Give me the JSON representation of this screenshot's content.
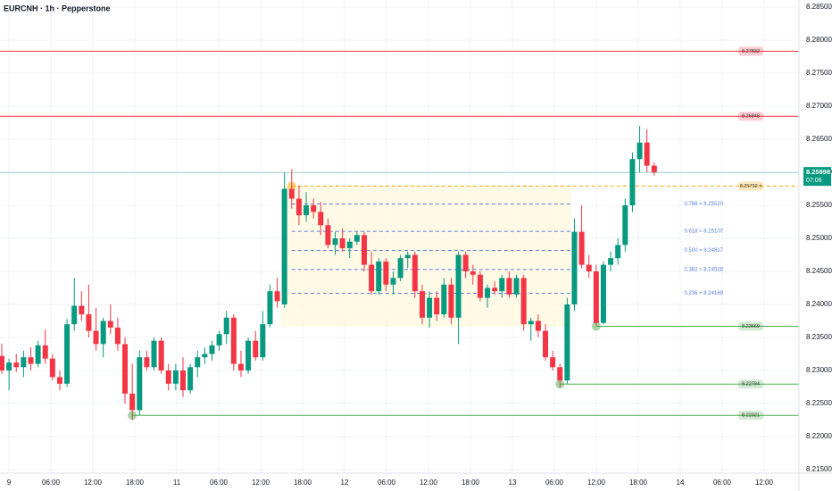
{
  "chart_data": {
    "type": "candlestick",
    "title": "EURCNH · 1h · Pepperstone",
    "up_color": "#089981",
    "down_color": "#f23645",
    "ylim": [
      8.21446,
      8.28608
    ],
    "yticks": [
      {
        "value": 8.285,
        "label": "8.28500"
      },
      {
        "value": 8.28,
        "label": "8.28000"
      },
      {
        "value": 8.275,
        "label": "8.27500"
      },
      {
        "value": 8.27,
        "label": "8.27000"
      },
      {
        "value": 8.265,
        "label": "8.26500"
      },
      {
        "value": 8.26,
        "label": "8.26000"
      },
      {
        "value": 8.255,
        "label": "8.25500"
      },
      {
        "value": 8.25,
        "label": "8.25000"
      },
      {
        "value": 8.245,
        "label": "8.24500"
      },
      {
        "value": 8.24,
        "label": "8.24000"
      },
      {
        "value": 8.235,
        "label": "8.23500"
      },
      {
        "value": 8.23,
        "label": "8.23000"
      },
      {
        "value": 8.225,
        "label": "8.22500"
      },
      {
        "value": 8.22,
        "label": "8.22000"
      },
      {
        "value": 8.215,
        "label": "8.21500"
      }
    ],
    "time_labels": [
      "9",
      "06:00",
      "12:00",
      "18:00",
      "11",
      "06:00",
      "12:00",
      "18:00",
      "12",
      "06:00",
      "12:00",
      "18:00",
      "13",
      "06:00",
      "12:00",
      "18:00",
      "14",
      "06:00",
      "12:00"
    ],
    "grid": true,
    "candles": [
      [
        8.2322,
        8.234,
        8.2295,
        8.23
      ],
      [
        8.23,
        8.2318,
        8.227,
        8.2312
      ],
      [
        8.2312,
        8.2325,
        8.2298,
        8.2305
      ],
      [
        8.2305,
        8.233,
        8.229,
        8.232
      ],
      [
        8.232,
        8.2335,
        8.23,
        8.231
      ],
      [
        8.231,
        8.2345,
        8.2305,
        8.2338
      ],
      [
        8.2338,
        8.2362,
        8.231,
        8.2318
      ],
      [
        8.2318,
        8.2325,
        8.2285,
        8.229
      ],
      [
        8.229,
        8.23,
        8.227,
        8.228
      ],
      [
        8.228,
        8.2378,
        8.2275,
        8.237
      ],
      [
        8.237,
        8.244,
        8.236,
        8.2398
      ],
      [
        8.2398,
        8.242,
        8.2375,
        8.2385
      ],
      [
        8.2385,
        8.243,
        8.235,
        8.236
      ],
      [
        8.236,
        8.2395,
        8.233,
        8.234
      ],
      [
        8.234,
        8.238,
        8.232,
        8.2375
      ],
      [
        8.2375,
        8.24,
        8.2355,
        8.2365
      ],
      [
        8.2365,
        8.238,
        8.233,
        8.234
      ],
      [
        8.234,
        8.235,
        8.225,
        8.2265
      ],
      [
        8.2265,
        8.231,
        8.2225,
        8.224
      ],
      [
        8.224,
        8.233,
        8.2232,
        8.232
      ],
      [
        8.232,
        8.233,
        8.23,
        8.2305
      ],
      [
        8.2305,
        8.235,
        8.23,
        8.2345
      ],
      [
        8.2345,
        8.235,
        8.2295,
        8.23
      ],
      [
        8.23,
        8.231,
        8.227,
        8.228
      ],
      [
        8.228,
        8.231,
        8.227,
        8.23
      ],
      [
        8.23,
        8.232,
        8.226,
        8.227
      ],
      [
        8.227,
        8.231,
        8.2265,
        8.2305
      ],
      [
        8.2305,
        8.233,
        8.229,
        8.232
      ],
      [
        8.232,
        8.2335,
        8.231,
        8.2325
      ],
      [
        8.2325,
        8.2345,
        8.2315,
        8.2338
      ],
      [
        8.2338,
        8.236,
        8.233,
        8.2355
      ],
      [
        8.2355,
        8.239,
        8.234,
        8.238
      ],
      [
        8.238,
        8.2385,
        8.23,
        8.231
      ],
      [
        8.231,
        8.233,
        8.229,
        8.23
      ],
      [
        8.23,
        8.235,
        8.2295,
        8.2345
      ],
      [
        8.2345,
        8.236,
        8.2315,
        8.232
      ],
      [
        8.232,
        8.239,
        8.2315,
        8.237
      ],
      [
        8.237,
        8.243,
        8.2365,
        8.242
      ],
      [
        8.242,
        8.244,
        8.2395,
        8.2405
      ],
      [
        8.24,
        8.26,
        8.2395,
        8.2575
      ],
      [
        8.2575,
        8.2605,
        8.2545,
        8.256
      ],
      [
        8.256,
        8.258,
        8.252,
        8.2535
      ],
      [
        8.2535,
        8.257,
        8.2525,
        8.255
      ],
      [
        8.255,
        8.256,
        8.253,
        8.254
      ],
      [
        8.254,
        8.2555,
        8.2505,
        8.252
      ],
      [
        8.252,
        8.253,
        8.2485,
        8.249
      ],
      [
        8.249,
        8.251,
        8.2475,
        8.25
      ],
      [
        8.25,
        8.2515,
        8.248,
        8.2485
      ],
      [
        8.2485,
        8.25,
        8.247,
        8.2495
      ],
      [
        8.2495,
        8.251,
        8.249,
        8.2505
      ],
      [
        8.2505,
        8.251,
        8.245,
        8.246
      ],
      [
        8.246,
        8.248,
        8.2415,
        8.242
      ],
      [
        8.242,
        8.247,
        8.2415,
        8.2465
      ],
      [
        8.2465,
        8.247,
        8.242,
        8.243
      ],
      [
        8.243,
        8.245,
        8.2415,
        8.244
      ],
      [
        8.244,
        8.2475,
        8.2435,
        8.247
      ],
      [
        8.247,
        8.248,
        8.2455,
        8.2475
      ],
      [
        8.2475,
        8.248,
        8.241,
        8.242
      ],
      [
        8.242,
        8.243,
        8.237,
        8.238
      ],
      [
        8.238,
        8.242,
        8.2365,
        8.241
      ],
      [
        8.241,
        8.242,
        8.2375,
        8.2385
      ],
      [
        8.2385,
        8.244,
        8.238,
        8.243
      ],
      [
        8.243,
        8.244,
        8.237,
        8.238
      ],
      [
        8.238,
        8.248,
        8.234,
        8.2475
      ],
      [
        8.2475,
        8.248,
        8.244,
        8.245
      ],
      [
        8.245,
        8.246,
        8.243,
        8.2445
      ],
      [
        8.2445,
        8.245,
        8.2405,
        8.241
      ],
      [
        8.241,
        8.243,
        8.2395,
        8.2425
      ],
      [
        8.2425,
        8.2435,
        8.2415,
        8.242
      ],
      [
        8.242,
        8.2445,
        8.241,
        8.244
      ],
      [
        8.244,
        8.245,
        8.241,
        8.2415
      ],
      [
        8.2415,
        8.2445,
        8.241,
        8.244
      ],
      [
        8.244,
        8.2445,
        8.236,
        8.237
      ],
      [
        8.237,
        8.238,
        8.2345,
        8.2375
      ],
      [
        8.2375,
        8.2385,
        8.235,
        8.236
      ],
      [
        8.236,
        8.237,
        8.2315,
        8.232
      ],
      [
        8.232,
        8.233,
        8.23,
        8.2305
      ],
      [
        8.2305,
        8.231,
        8.2275,
        8.2285
      ],
      [
        8.2285,
        8.241,
        8.228,
        8.24
      ],
      [
        8.24,
        8.253,
        8.239,
        8.251
      ],
      [
        8.251,
        8.255,
        8.2455,
        8.246
      ],
      [
        8.246,
        8.2475,
        8.244,
        8.245
      ],
      [
        8.245,
        8.246,
        8.2367,
        8.2372
      ],
      [
        8.2372,
        8.2465,
        8.237,
        8.246
      ],
      [
        8.246,
        8.248,
        8.245,
        8.247
      ],
      [
        8.247,
        8.25,
        8.246,
        8.249
      ],
      [
        8.249,
        8.256,
        8.248,
        8.255
      ],
      [
        8.255,
        8.263,
        8.254,
        8.262
      ],
      [
        8.262,
        8.267,
        8.26,
        8.2645
      ],
      [
        8.2645,
        8.2665,
        8.26,
        8.261
      ],
      [
        8.261,
        8.2615,
        8.2595,
        8.26
      ]
    ],
    "levels": [
      {
        "value": 8.27832,
        "label": "8.27832",
        "color": "#f23645",
        "style": "solid",
        "kind": "pill"
      },
      {
        "value": 8.26848,
        "label": "8.26848",
        "color": "#f23645",
        "style": "solid",
        "kind": "pill"
      },
      {
        "value": 8.25792,
        "label": "8.25792 ±",
        "color": "#f7a600",
        "style": "dashed",
        "kind": "pill"
      },
      {
        "value": 8.2552,
        "label": "0.786 = 8.25520",
        "color": "#5b7ee5",
        "style": "dashed",
        "kind": "fib"
      },
      {
        "value": 8.25107,
        "label": "0.618 = 8.25107",
        "color": "#5b7ee5",
        "style": "dashed",
        "kind": "fib"
      },
      {
        "value": 8.24817,
        "label": "0.500 = 8.24817",
        "color": "#5b7ee5",
        "style": "dashed",
        "kind": "fib"
      },
      {
        "value": 8.24528,
        "label": "0.382 = 8.24528",
        "color": "#5b7ee5",
        "style": "dashed",
        "kind": "fib"
      },
      {
        "value": 8.24169,
        "label": "0.236 = 8.24169",
        "color": "#5b7ee5",
        "style": "dashed",
        "kind": "fib"
      },
      {
        "value": 8.23669,
        "label": "8.23669",
        "color": "#4caf50",
        "style": "solid",
        "kind": "pill"
      },
      {
        "value": 8.22794,
        "label": "8.22794",
        "color": "#4caf50",
        "style": "solid",
        "kind": "pill"
      },
      {
        "value": 8.22321,
        "label": "8.22321",
        "color": "#4caf50",
        "style": "solid",
        "kind": "pill"
      }
    ],
    "last_price": 8.25998,
    "countdown": "07:06"
  }
}
